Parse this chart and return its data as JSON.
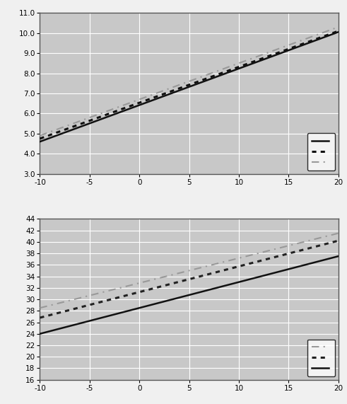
{
  "top_chart": {
    "xlim": [
      -10,
      20
    ],
    "ylim": [
      3.0,
      11.0
    ],
    "yticks": [
      3.0,
      4.0,
      5.0,
      6.0,
      7.0,
      8.0,
      9.0,
      10.0,
      11.0
    ],
    "ytick_labels": [
      "3.0",
      "4.0",
      "5.0",
      "6.0",
      "7.0",
      "8.0",
      "9.0",
      "10.0",
      "11.0"
    ],
    "xticks": [
      -10,
      -5,
      0,
      5,
      10,
      15,
      20
    ],
    "lines": [
      {
        "x": [
          -10,
          20
        ],
        "y": [
          4.6,
          10.05
        ],
        "style": "solid",
        "color": "#111111",
        "lw": 1.8
      },
      {
        "x": [
          -10,
          20
        ],
        "y": [
          4.75,
          10.1
        ],
        "style": "dotted",
        "color": "#111111",
        "lw": 2.2
      },
      {
        "x": [
          -10,
          20
        ],
        "y": [
          4.9,
          10.3
        ],
        "style": "dashdot",
        "color": "#999999",
        "lw": 1.5
      }
    ],
    "bg_color": "#c8c8c8",
    "grid_color": "#ffffff"
  },
  "bottom_chart": {
    "xlim": [
      -10,
      20
    ],
    "ylim": [
      16,
      44
    ],
    "yticks": [
      16,
      18,
      20,
      22,
      24,
      26,
      28,
      30,
      32,
      34,
      36,
      38,
      40,
      42,
      44
    ],
    "ytick_labels": [
      "16",
      "18",
      "20",
      "22",
      "24",
      "26",
      "28",
      "30",
      "32",
      "34",
      "36",
      "38",
      "40",
      "42",
      "44"
    ],
    "xticks": [
      -10,
      -5,
      0,
      5,
      10,
      15,
      20
    ],
    "lines": [
      {
        "x": [
          -10,
          20
        ],
        "y": [
          28.5,
          41.5
        ],
        "style": "dashdot",
        "color": "#999999",
        "lw": 1.5
      },
      {
        "x": [
          -10,
          20
        ],
        "y": [
          26.8,
          40.2
        ],
        "style": "dotted",
        "color": "#222222",
        "lw": 2.2
      },
      {
        "x": [
          -10,
          20
        ],
        "y": [
          24.0,
          37.5
        ],
        "style": "solid",
        "color": "#111111",
        "lw": 1.8
      }
    ],
    "bg_color": "#c8c8c8",
    "grid_color": "#ffffff"
  },
  "outer_bg": "#f0f0f0",
  "panel_bg": "#ffffff"
}
